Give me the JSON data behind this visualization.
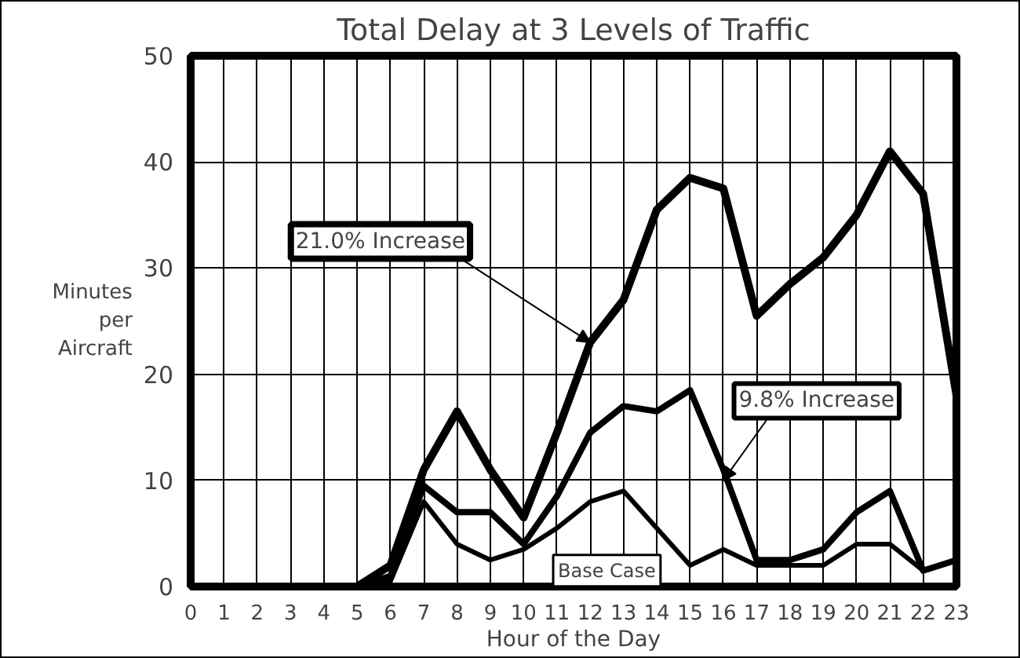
{
  "chart_data": {
    "type": "line",
    "title": "Total Delay at 3 Levels of Traffic",
    "xlabel": "Hour of the Day",
    "ylabel": "Minutes per Aircraft",
    "x": [
      0,
      1,
      2,
      3,
      4,
      5,
      6,
      7,
      8,
      9,
      10,
      11,
      12,
      13,
      14,
      15,
      16,
      17,
      18,
      19,
      20,
      21,
      22,
      23
    ],
    "series": [
      {
        "color": "#000000",
        "values": [
          0,
          0,
          0,
          0,
          0,
          0,
          2,
          11,
          16.5,
          11,
          6.5,
          14.5,
          23,
          27,
          35.5,
          38.5,
          37.5,
          25.5,
          28.5,
          31,
          35,
          41,
          37,
          18
        ]
      },
      {
        "color": "#000000",
        "values": [
          0,
          0,
          0,
          0,
          0,
          0,
          1,
          9.5,
          7,
          7,
          4,
          8.5,
          14.5,
          17,
          16.5,
          18.5,
          11,
          2.5,
          2.5,
          3.5,
          7,
          9,
          1.5,
          2.5
        ]
      },
      {
        "color": "#000000",
        "values": [
          0,
          0,
          0,
          0,
          0,
          0,
          0.5,
          8,
          4,
          2.5,
          3.5,
          5.5,
          8,
          9,
          5.5,
          2,
          3.5,
          2,
          2,
          2,
          4,
          4,
          1.5,
          2.5
        ]
      }
    ],
    "annotations": [
      {
        "text": "21.0% Increase",
        "x": 12,
        "y": 23
      },
      {
        "text": "9.8% Increase",
        "x": 16,
        "y": 10
      },
      "Base Case"
    ],
    "xlim": [
      0,
      23
    ],
    "ylim": [
      0,
      50
    ],
    "xticks": [
      0,
      1,
      2,
      3,
      4,
      5,
      6,
      7,
      8,
      9,
      10,
      11,
      12,
      13,
      14,
      15,
      16,
      17,
      18,
      19,
      20,
      21,
      22,
      23
    ],
    "yticks": [
      0,
      10,
      20,
      30,
      40,
      50
    ],
    "grid": true,
    "marker": "none",
    "line_style": "solid"
  }
}
